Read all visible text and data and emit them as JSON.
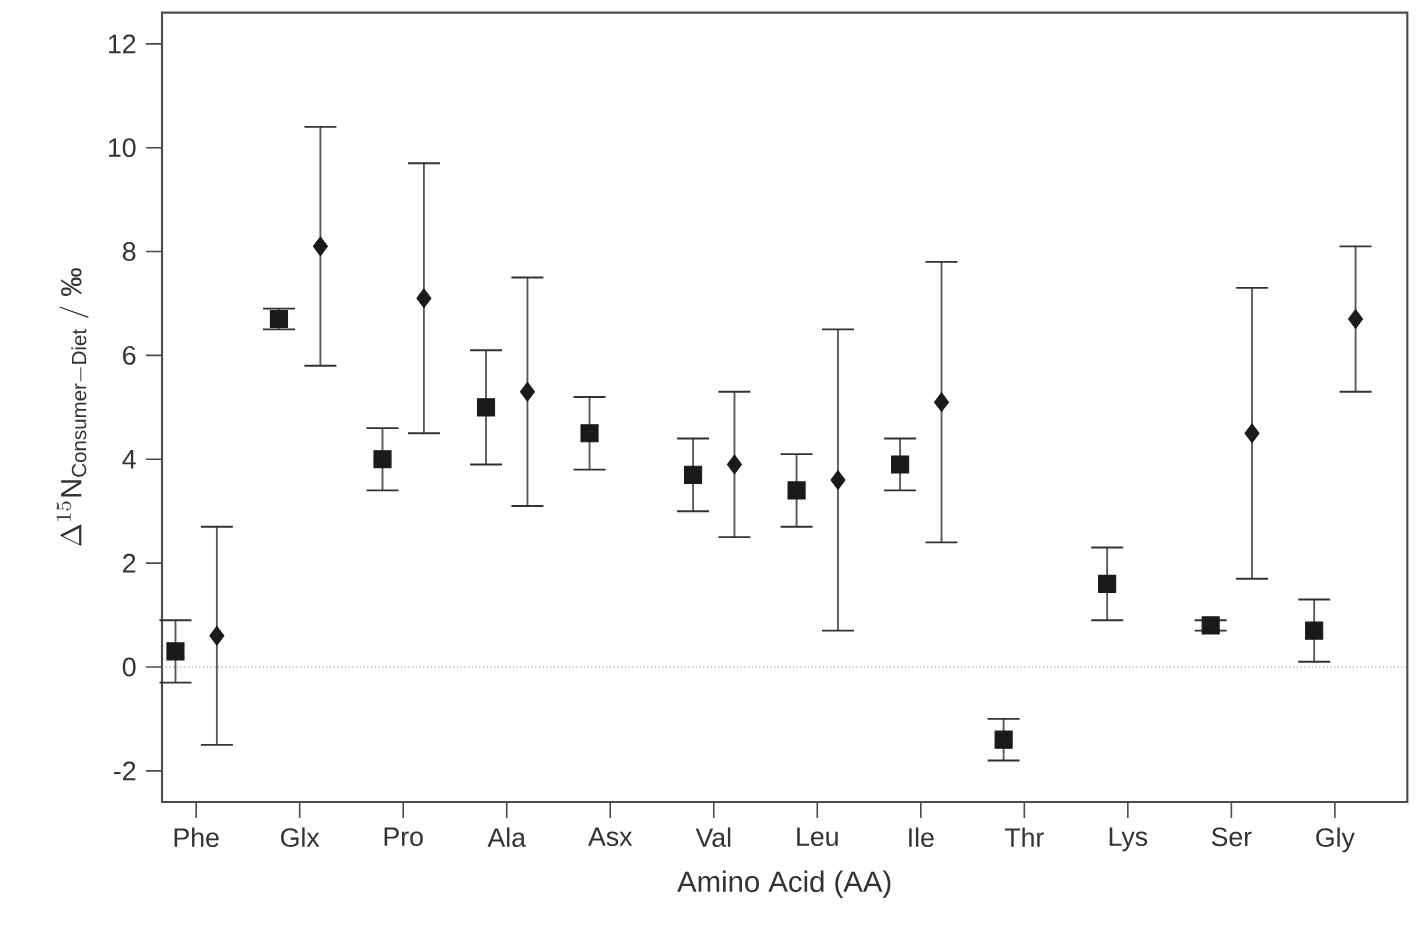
{
  "chart_data": {
    "type": "scatter",
    "xlabel": "Amino Acid (AA)",
    "ylabel": "\\Delta^{15}\\mathrm{N}_{\\mathrm{Consumer{-}Diet}}\\ /\\ \\text{‰}",
    "categories": [
      "Phe",
      "Glx",
      "Pro",
      "Ala",
      "Asx",
      "Val",
      "Leu",
      "Ile",
      "Thr",
      "Lys",
      "Ser",
      "Gly"
    ],
    "series": [
      {
        "color": "#1a1a1a",
        "marker": "square",
        "values": [
          0.3,
          6.7,
          4.0,
          5.0,
          4.5,
          3.7,
          3.4,
          3.9,
          -1.4,
          1.6,
          0.8,
          0.7
        ],
        "errors": [
          [
            -0.3,
            0.9
          ],
          [
            6.5,
            6.9
          ],
          [
            3.4,
            4.6
          ],
          [
            3.9,
            6.1
          ],
          [
            3.8,
            5.2
          ],
          [
            3.0,
            4.4
          ],
          [
            2.7,
            4.1
          ],
          [
            3.4,
            4.4
          ],
          [
            -1.8,
            -1.0
          ],
          [
            0.9,
            2.3
          ],
          [
            0.7,
            0.9
          ],
          [
            0.1,
            1.3
          ]
        ]
      },
      {
        "color": "#1a1a1a",
        "marker": "diamond",
        "values": [
          0.6,
          8.1,
          7.1,
          5.3,
          null,
          3.9,
          3.6,
          5.1,
          null,
          null,
          4.5,
          6.7
        ],
        "errors": [
          [
            -1.5,
            2.7
          ],
          [
            5.8,
            10.4
          ],
          [
            4.5,
            9.7
          ],
          [
            3.1,
            7.5
          ],
          null,
          [
            2.5,
            5.3
          ],
          [
            0.7,
            6.5
          ],
          [
            2.4,
            7.8
          ],
          null,
          null,
          [
            1.7,
            7.3
          ],
          [
            5.3,
            8.1
          ]
        ]
      }
    ],
    "ylim": [
      -2.6,
      12.6
    ],
    "yticks": [
      -2,
      0,
      2,
      4,
      6,
      8,
      10,
      12
    ],
    "ref_lines": [
      {
        "axis": "y",
        "value": 0,
        "color": "#808080",
        "line_style": "dotted"
      }
    ],
    "grid": false
  }
}
